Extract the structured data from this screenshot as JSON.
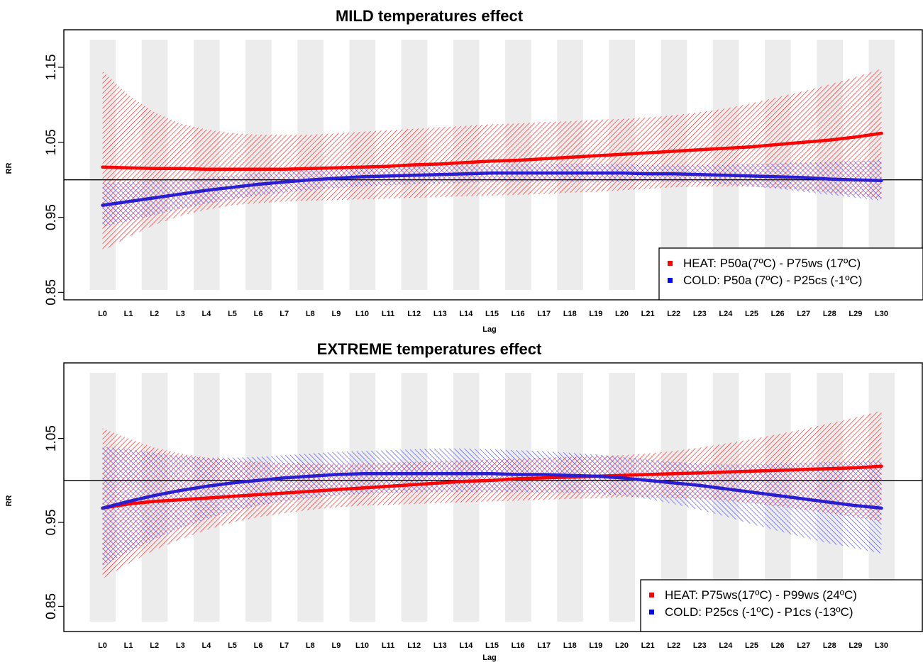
{
  "chart_data": [
    {
      "type": "line",
      "title": "MILD temperatures effect",
      "xlabel": "Lag",
      "ylabel": "RR",
      "ylim": [
        0.84,
        1.2
      ],
      "yticks": [
        "0.85",
        "0.95",
        "1.05",
        "1.15"
      ],
      "reference_line": 1.0,
      "categories": [
        "L0",
        "L1",
        "L2",
        "L3",
        "L4",
        "L5",
        "L6",
        "L7",
        "L8",
        "L9",
        "L10",
        "L11",
        "L12",
        "L13",
        "L14",
        "L15",
        "L16",
        "L17",
        "L18",
        "L19",
        "L20",
        "L21",
        "L22",
        "L23",
        "L24",
        "L25",
        "L26",
        "L27",
        "L28",
        "L29",
        "L30"
      ],
      "series": [
        {
          "name": "HEAT: P50a(7ºC) - P75ws (17ºC)",
          "color": "#ff0000",
          "values": [
            1.017,
            1.016,
            1.015,
            1.015,
            1.014,
            1.014,
            1.014,
            1.014,
            1.015,
            1.016,
            1.017,
            1.018,
            1.02,
            1.021,
            1.023,
            1.025,
            1.026,
            1.028,
            1.03,
            1.032,
            1.034,
            1.036,
            1.038,
            1.04,
            1.042,
            1.044,
            1.047,
            1.05,
            1.053,
            1.057,
            1.062
          ],
          "lower": [
            0.905,
            0.924,
            0.94,
            0.952,
            0.96,
            0.966,
            0.969,
            0.971,
            0.972,
            0.973,
            0.974,
            0.975,
            0.976,
            0.977,
            0.978,
            0.979,
            0.98,
            0.981,
            0.983,
            0.984,
            0.986,
            0.988,
            0.99,
            0.991,
            0.991,
            0.991,
            0.989,
            0.986,
            0.983,
            0.979,
            0.975
          ],
          "upper": [
            1.145,
            1.113,
            1.09,
            1.075,
            1.067,
            1.062,
            1.06,
            1.06,
            1.06,
            1.062,
            1.064,
            1.066,
            1.068,
            1.07,
            1.072,
            1.074,
            1.075,
            1.077,
            1.078,
            1.08,
            1.081,
            1.083,
            1.086,
            1.09,
            1.095,
            1.102,
            1.11,
            1.118,
            1.127,
            1.137,
            1.148
          ]
        },
        {
          "name": "COLD: P50a (7ºC) - P25cs (-1ºC)",
          "color": "#0000ff",
          "values": [
            0.966,
            0.971,
            0.976,
            0.981,
            0.986,
            0.99,
            0.994,
            0.997,
            1.0,
            1.002,
            1.004,
            1.005,
            1.006,
            1.007,
            1.008,
            1.009,
            1.009,
            1.009,
            1.009,
            1.009,
            1.009,
            1.008,
            1.008,
            1.007,
            1.006,
            1.005,
            1.004,
            1.003,
            1.001,
            1.0,
            0.999
          ],
          "lower": [
            0.937,
            0.945,
            0.953,
            0.961,
            0.968,
            0.974,
            0.979,
            0.983,
            0.986,
            0.989,
            0.991,
            0.993,
            0.994,
            0.995,
            0.996,
            0.997,
            0.997,
            0.997,
            0.997,
            0.997,
            0.997,
            0.997,
            0.997,
            0.996,
            0.994,
            0.991,
            0.988,
            0.984,
            0.98,
            0.976,
            0.972
          ],
          "upper": [
            0.996,
            0.997,
            0.999,
            1.0,
            1.003,
            1.006,
            1.009,
            1.011,
            1.013,
            1.015,
            1.016,
            1.017,
            1.018,
            1.019,
            1.02,
            1.02,
            1.021,
            1.021,
            1.021,
            1.021,
            1.021,
            1.02,
            1.02,
            1.02,
            1.02,
            1.021,
            1.022,
            1.023,
            1.024,
            1.025,
            1.026
          ]
        }
      ],
      "legend": {
        "position": "bottom-right"
      },
      "grid": false
    },
    {
      "type": "line",
      "title": "EXTREME temperatures effect",
      "xlabel": "Lag",
      "ylabel": "RR",
      "ylim": [
        0.82,
        1.14
      ],
      "yticks": [
        "0.85",
        "0.95",
        "1.05"
      ],
      "reference_line": 1.0,
      "categories": [
        "L0",
        "L1",
        "L2",
        "L3",
        "L4",
        "L5",
        "L6",
        "L7",
        "L8",
        "L9",
        "L10",
        "L11",
        "L12",
        "L13",
        "L14",
        "L15",
        "L16",
        "L17",
        "L18",
        "L19",
        "L20",
        "L21",
        "L22",
        "L23",
        "L24",
        "L25",
        "L26",
        "L27",
        "L28",
        "L29",
        "L30"
      ],
      "series": [
        {
          "name": "HEAT: P75ws(17ºC) - P99ws (24ºC)",
          "color": "#ff0000",
          "values": [
            0.967,
            0.972,
            0.975,
            0.977,
            0.979,
            0.981,
            0.983,
            0.985,
            0.987,
            0.989,
            0.991,
            0.993,
            0.995,
            0.997,
            0.999,
            1.0,
            1.002,
            1.003,
            1.004,
            1.005,
            1.006,
            1.007,
            1.008,
            1.009,
            1.01,
            1.011,
            1.012,
            1.013,
            1.014,
            1.015,
            1.017
          ],
          "lower": [
            0.883,
            0.901,
            0.917,
            0.93,
            0.941,
            0.95,
            0.956,
            0.961,
            0.965,
            0.968,
            0.97,
            0.971,
            0.972,
            0.973,
            0.974,
            0.975,
            0.976,
            0.977,
            0.978,
            0.979,
            0.98,
            0.98,
            0.979,
            0.978,
            0.976,
            0.973,
            0.969,
            0.965,
            0.961,
            0.956,
            0.951
          ],
          "upper": [
            1.062,
            1.05,
            1.039,
            1.032,
            1.027,
            1.024,
            1.022,
            1.021,
            1.02,
            1.02,
            1.02,
            1.021,
            1.022,
            1.023,
            1.024,
            1.025,
            1.026,
            1.027,
            1.028,
            1.029,
            1.03,
            1.032,
            1.035,
            1.039,
            1.044,
            1.049,
            1.055,
            1.061,
            1.068,
            1.075,
            1.083
          ]
        },
        {
          "name": "COLD: P25cs (-1ºC) - P1cs (-13ºC)",
          "color": "#0000ff",
          "values": [
            0.967,
            0.975,
            0.982,
            0.988,
            0.993,
            0.997,
            1.0,
            1.003,
            1.005,
            1.007,
            1.008,
            1.008,
            1.008,
            1.008,
            1.008,
            1.008,
            1.007,
            1.007,
            1.006,
            1.005,
            1.003,
            1.0,
            0.997,
            0.994,
            0.99,
            0.986,
            0.982,
            0.978,
            0.974,
            0.97,
            0.967
          ],
          "lower": [
            0.898,
            0.915,
            0.93,
            0.943,
            0.954,
            0.963,
            0.97,
            0.975,
            0.979,
            0.982,
            0.984,
            0.985,
            0.986,
            0.986,
            0.986,
            0.986,
            0.986,
            0.985,
            0.985,
            0.984,
            0.982,
            0.978,
            0.972,
            0.965,
            0.957,
            0.948,
            0.94,
            0.932,
            0.925,
            0.919,
            0.913
          ],
          "upper": [
            1.04,
            1.037,
            1.033,
            1.029,
            1.027,
            1.027,
            1.028,
            1.03,
            1.032,
            1.034,
            1.035,
            1.036,
            1.037,
            1.038,
            1.038,
            1.037,
            1.036,
            1.035,
            1.033,
            1.031,
            1.028,
            1.025,
            1.022,
            1.02,
            1.019,
            1.019,
            1.02,
            1.021,
            1.022,
            1.023,
            1.024
          ]
        }
      ],
      "legend": {
        "position": "bottom-right"
      },
      "grid": false
    }
  ]
}
